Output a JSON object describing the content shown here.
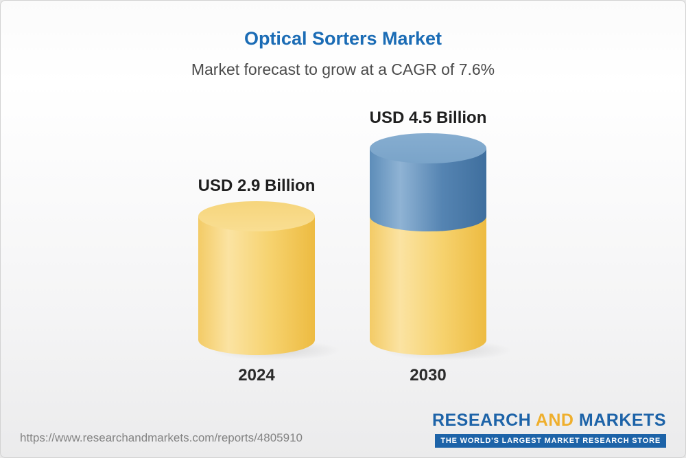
{
  "header": {
    "title": "Optical Sorters Market",
    "subtitle": "Market forecast to grow at a CAGR of 7.6%"
  },
  "chart_data": {
    "type": "bar",
    "title": "Optical Sorters Market",
    "subtitle": "Market forecast to grow at a CAGR of 7.6%",
    "unit": "USD Billion",
    "cagr_percent": 7.6,
    "categories": [
      "2024",
      "2030"
    ],
    "values": [
      2.9,
      4.5
    ],
    "bars": [
      {
        "category": "2024",
        "value": 2.9,
        "label": "USD 2.9 Billion",
        "segments": [
          {
            "color_key": "yellow",
            "value": 2.9
          }
        ]
      },
      {
        "category": "2030",
        "value": 4.5,
        "label": "USD 4.5 Billion",
        "segments": [
          {
            "color_key": "blue",
            "value": 1.6
          },
          {
            "color_key": "yellow",
            "value": 2.9
          }
        ]
      }
    ],
    "legend": "none",
    "grid": "off",
    "colors": {
      "bar_yellow": "#f3c75a",
      "bar_yellow_cap": "#f8dd92",
      "bar_blue": "#4f7fae",
      "bar_blue_cap": "#7ca7cb",
      "title_blue": "#1b6cb5",
      "subtitle_gray": "#4b4b4b"
    }
  },
  "footer": {
    "url": "https://www.researchandmarkets.com/reports/4805910",
    "logo": {
      "word1": "RESEARCH",
      "word2": "AND",
      "word3": "MARKETS",
      "tagline": "THE WORLD'S LARGEST MARKET RESEARCH STORE",
      "brand_blue": "#1d63a8",
      "brand_gold": "#efaf2d"
    }
  }
}
